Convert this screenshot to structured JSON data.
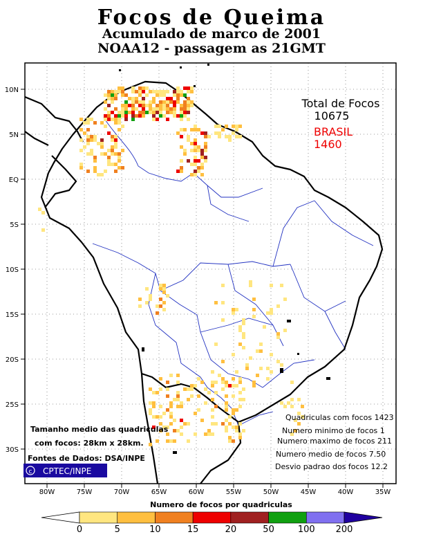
{
  "title": {
    "line1": "Focos de Queima",
    "line2": "Acumulado de marco de 2001",
    "line3": "NOAA12 - passagem as 21GMT"
  },
  "totals": {
    "total_label": "Total de Focos",
    "total_value": "10675",
    "country_label": "BRASIL",
    "country_value": "1460"
  },
  "axes": {
    "lat_labels": [
      "10N",
      "5N",
      "EQ",
      "5S",
      "10S",
      "15S",
      "20S",
      "25S",
      "30S"
    ],
    "lon_labels": [
      "80W",
      "75W",
      "70W",
      "65W",
      "60W",
      "55W",
      "50W",
      "45W",
      "40W",
      "35W"
    ]
  },
  "stats": {
    "line1": "Quadriculas com focos 1423",
    "line2": "Numero minimo de focos 1",
    "line3": "Numero maximo de focos 211",
    "line4": "Numero medio de focos 7.50",
    "line5": "Desvio padrao dos focos 12.2"
  },
  "notes": {
    "grid_size_1": "Tamanho medio das quadriculas",
    "grid_size_2": "com focos: 28km x 28km.",
    "source": "Fontes de Dados: DSA/INPE",
    "logo": "CPTEC/INPE"
  },
  "legend": {
    "title": "Numero de focos por quadriculas",
    "ticks": [
      "0",
      "5",
      "10",
      "15",
      "20",
      "50",
      "100",
      "200"
    ],
    "colors": [
      "#ffffff",
      "#ffe680",
      "#ffbf40",
      "#f08020",
      "#ee0000",
      "#a02020",
      "#10a010",
      "#8070f0",
      "#2000a0"
    ]
  }
}
